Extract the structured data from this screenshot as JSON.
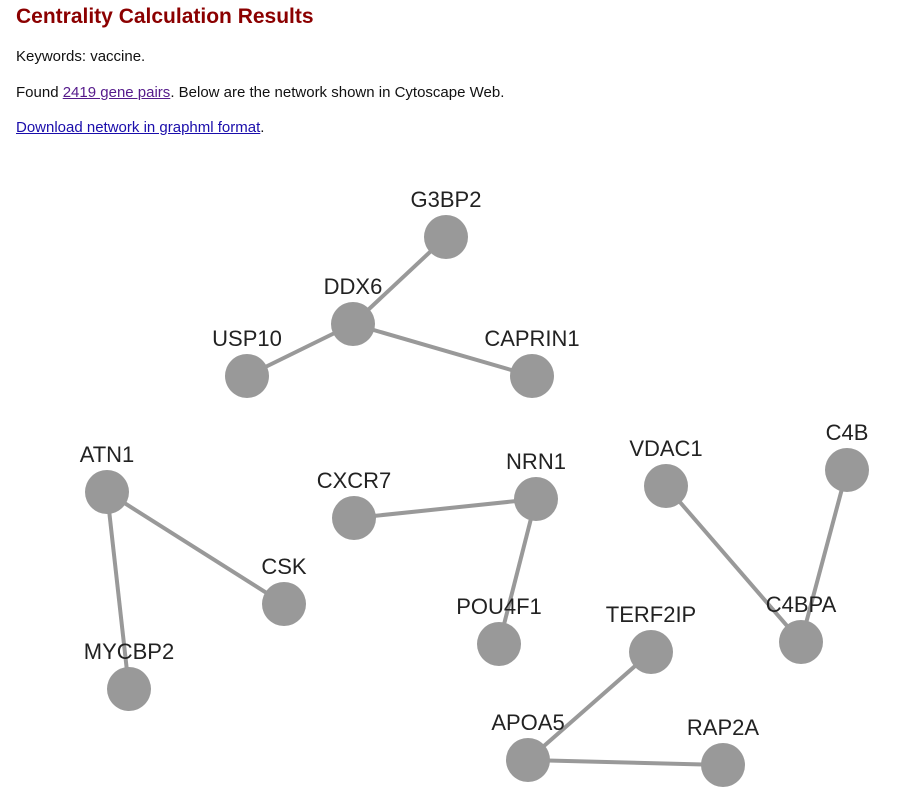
{
  "header": {
    "title": "Centrality Calculation Results"
  },
  "keywords": "Keywords: vaccine.",
  "found": {
    "prefix": "Found",
    "link": "2419 gene pairs",
    "suffix": ". Below are the network shown in Cytoscape Web."
  },
  "download": {
    "link": "Download network in graphml format",
    "suffix": "."
  },
  "nodes": [
    {
      "label": "G3BP2"
    },
    {
      "label": "DDX6"
    },
    {
      "label": "USP10"
    },
    {
      "label": "CAPRIN1"
    },
    {
      "label": "ATN1"
    },
    {
      "label": "CSK"
    },
    {
      "label": "MYCBP2"
    },
    {
      "label": "CXCR7"
    },
    {
      "label": "NRN1"
    },
    {
      "label": "POU4F1"
    },
    {
      "label": "VDAC1"
    },
    {
      "label": "C4B"
    },
    {
      "label": "C4BPA"
    },
    {
      "label": "TERF2IP"
    },
    {
      "label": "APOA5"
    },
    {
      "label": "RAP2A"
    }
  ]
}
